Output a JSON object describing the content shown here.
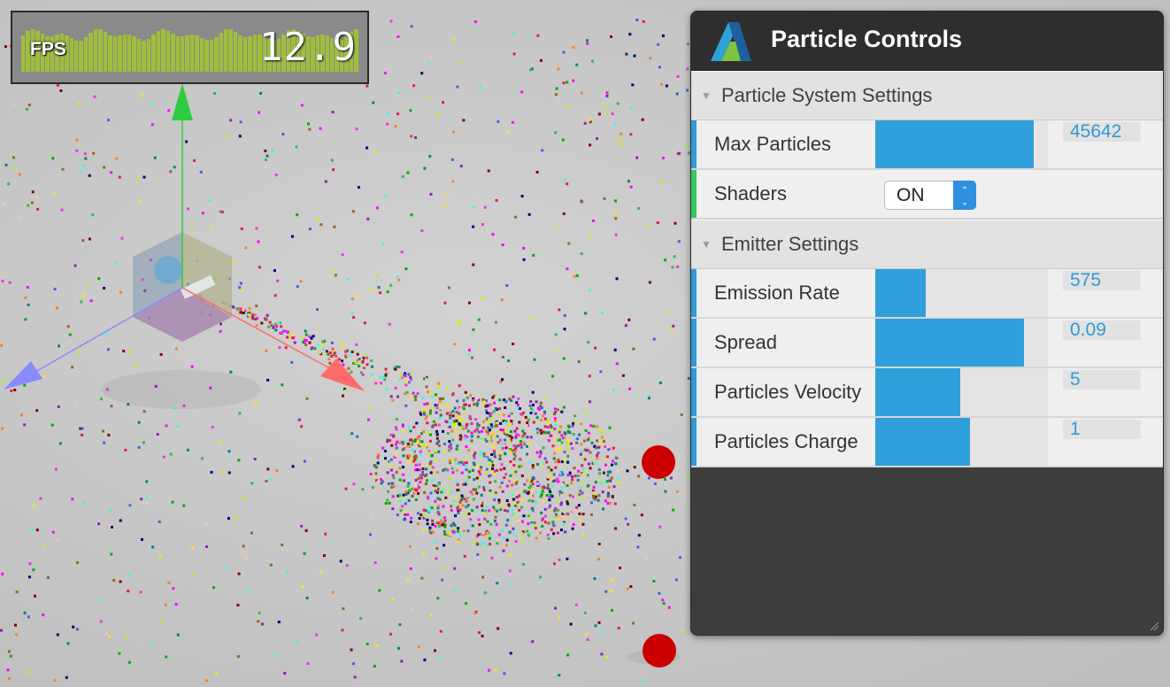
{
  "fps": {
    "label": "FPS",
    "value": "12.9"
  },
  "panel": {
    "title": "Particle Controls",
    "sections": [
      {
        "title": "Particle System Settings",
        "rows": [
          {
            "label": "Max Particles",
            "type": "slider",
            "value": "45642",
            "fraction": 0.92
          },
          {
            "label": "Shaders",
            "type": "select",
            "value": "ON"
          }
        ]
      },
      {
        "title": "Emitter Settings",
        "rows": [
          {
            "label": "Emission Rate",
            "type": "slider",
            "value": "575",
            "fraction": 0.29
          },
          {
            "label": "Spread",
            "type": "slider",
            "value": "0.09",
            "fraction": 0.86
          },
          {
            "label": "Particles Velocity",
            "type": "slider",
            "value": "5",
            "fraction": 0.49
          },
          {
            "label": "Particles Charge",
            "type": "slider",
            "value": "1",
            "fraction": 0.55
          }
        ]
      }
    ]
  },
  "colors": {
    "accent_blue": "#2fa0db",
    "shader_green": "#2fcb5e",
    "fps_bar": "#9fbf3a",
    "gizmo_y": "#2ecc40",
    "gizmo_x": "#ff6b6b",
    "gizmo_z": "#8a8aff",
    "charge_red": "#cc0000"
  }
}
